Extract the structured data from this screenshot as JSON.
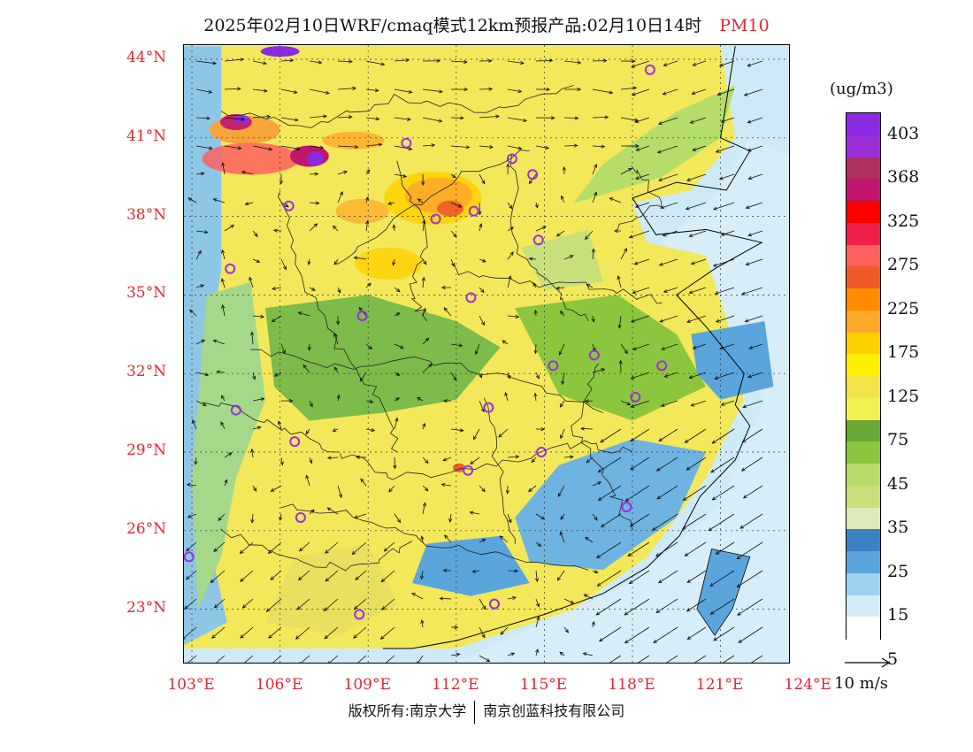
{
  "title": {
    "main": "2025年02月10日WRF/cmaq模式12km预报产品:02月10日14时",
    "pollutant": "PM10"
  },
  "map": {
    "lat_labels": [
      "44°N",
      "41°N",
      "38°N",
      "35°N",
      "32°N",
      "29°N",
      "26°N",
      "23°N"
    ],
    "lon_labels": [
      "103°E",
      "106°E",
      "109°E",
      "112°E",
      "115°E",
      "118°E",
      "121°E",
      "124°E"
    ],
    "lat_values": [
      44,
      41,
      38,
      35,
      32,
      29,
      26,
      23
    ],
    "lon_values": [
      103,
      106,
      109,
      112,
      115,
      118,
      121,
      124
    ],
    "city_markers": [
      {
        "lon": 118.6,
        "lat": 43.6
      },
      {
        "lon": 110.3,
        "lat": 40.8
      },
      {
        "lon": 113.9,
        "lat": 40.2
      },
      {
        "lon": 114.6,
        "lat": 39.6
      },
      {
        "lon": 111.3,
        "lat": 37.9
      },
      {
        "lon": 112.6,
        "lat": 38.2
      },
      {
        "lon": 106.3,
        "lat": 38.4
      },
      {
        "lon": 114.8,
        "lat": 37.1
      },
      {
        "lon": 104.3,
        "lat": 36.0
      },
      {
        "lon": 112.5,
        "lat": 34.9
      },
      {
        "lon": 108.8,
        "lat": 34.2
      },
      {
        "lon": 115.3,
        "lat": 32.3
      },
      {
        "lon": 116.7,
        "lat": 32.7
      },
      {
        "lon": 119.0,
        "lat": 32.3
      },
      {
        "lon": 118.1,
        "lat": 31.1
      },
      {
        "lon": 104.5,
        "lat": 30.6
      },
      {
        "lon": 113.1,
        "lat": 30.7
      },
      {
        "lon": 106.5,
        "lat": 29.4
      },
      {
        "lon": 114.9,
        "lat": 29.0
      },
      {
        "lon": 112.4,
        "lat": 28.3
      },
      {
        "lon": 106.7,
        "lat": 26.5
      },
      {
        "lon": 117.8,
        "lat": 26.9
      },
      {
        "lon": 102.9,
        "lat": 25.0
      },
      {
        "lon": 108.7,
        "lat": 22.8
      },
      {
        "lon": 113.3,
        "lat": 23.2
      }
    ],
    "city_marker_color": "#9b2fe0"
  },
  "colorbar": {
    "units": "(ug/m3)",
    "labels": [
      "403",
      "368",
      "325",
      "275",
      "225",
      "175",
      "125",
      "75",
      "45",
      "35",
      "25",
      "15",
      "5"
    ],
    "colors": [
      "#8a2be2",
      "#9b30d9",
      "#b03060",
      "#c0146e",
      "#ff0000",
      "#f0204a",
      "#ff6060",
      "#f05a28",
      "#ff8c00",
      "#ffa828",
      "#ffd000",
      "#fff000",
      "#f4e44a",
      "#f0f050",
      "#66a832",
      "#8cc63e",
      "#b5dd6a",
      "#c8e07a",
      "#ddeaba",
      "#3a82c4",
      "#5aa6dc",
      "#9dd3f0",
      "#d3ecf8",
      "#ffffff"
    ]
  },
  "wind_reference": {
    "label": "10 m/s"
  },
  "footer": {
    "left": "版权所有:南京大学",
    "right": "南京创蓝科技有限公司"
  }
}
